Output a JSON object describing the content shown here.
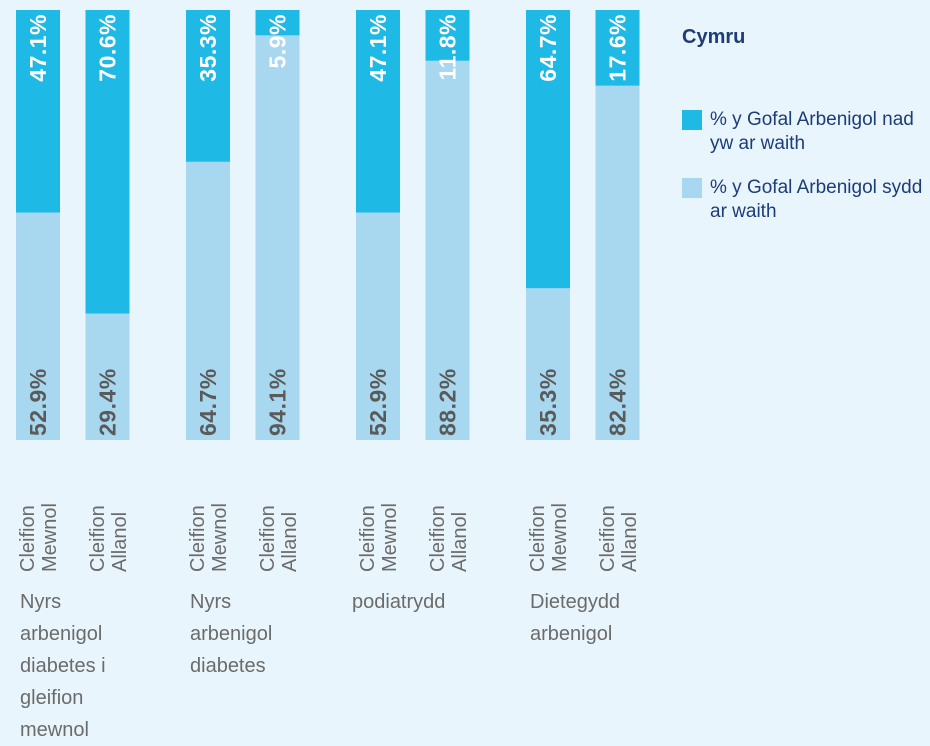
{
  "chart_data": {
    "type": "stacked-bar",
    "title": "Cymru",
    "categories": [
      "Cleifion Mewnol",
      "Cleifion Allanol",
      "Cleifion Mewnol",
      "Cleifion Allanol",
      "Cleifion Mewnol",
      "Cleifion Allanol",
      "Cleifion Mewnol",
      "Cleifion Allanol"
    ],
    "groups": [
      "Nyrs arbenigol diabetes i gleifion mewnol",
      "Nyrs arbenigol diabetes",
      "podiatrydd",
      "Dietegydd arbenigol"
    ],
    "series": [
      {
        "name": "% y Gofal Arbenigol sydd ar waith",
        "color": "#a8d8ef",
        "values": [
          52.9,
          29.4,
          64.7,
          94.1,
          52.9,
          88.2,
          35.3,
          82.4
        ],
        "value_labels": [
          "52.9%",
          "29.4%",
          "64.7%",
          "94.1%",
          "52.9%",
          "88.2%",
          "35.3%",
          "82.4%"
        ]
      },
      {
        "name": "% y Gofal Arbenigol nad yw ar waith",
        "color": "#1fb9e6",
        "values": [
          47.1,
          70.6,
          35.3,
          5.9,
          47.1,
          11.8,
          64.7,
          17.6
        ],
        "value_labels": [
          "47.1%",
          "70.6%",
          "35.3%",
          "5.9%",
          "47.1%",
          "11.8%",
          "64.7%",
          "17.6%"
        ]
      }
    ],
    "ylim": [
      0,
      100
    ],
    "legend": "right"
  }
}
